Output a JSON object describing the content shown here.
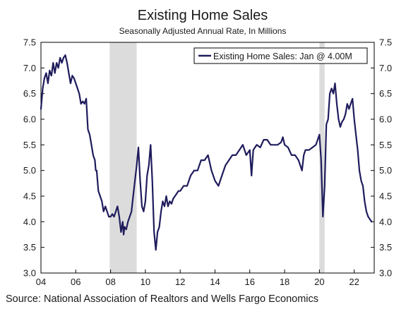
{
  "chart_data": {
    "type": "line",
    "title": "Existing Home Sales",
    "subtitle": "Seasonally Adjusted Annual Rate, In Millions",
    "source": "Source: National Association of Realtors and Wells Fargo Economics",
    "legend": {
      "label": "Existing Home Sales: Jan @ 4.00M",
      "placement": "top-right"
    },
    "x_ticks": [
      {
        "value": 2004,
        "label": "04"
      },
      {
        "value": 2006,
        "label": "06"
      },
      {
        "value": 2008,
        "label": "08"
      },
      {
        "value": 2010,
        "label": "10"
      },
      {
        "value": 2012,
        "label": "12"
      },
      {
        "value": 2014,
        "label": "14"
      },
      {
        "value": 2016,
        "label": "16"
      },
      {
        "value": 2018,
        "label": "18"
      },
      {
        "value": 2020,
        "label": "20"
      },
      {
        "value": 2022,
        "label": "22"
      }
    ],
    "xlim": [
      2004,
      2023.15
    ],
    "ylim": [
      3.0,
      7.5
    ],
    "y_ticks": [
      3.0,
      3.5,
      4.0,
      4.5,
      5.0,
      5.5,
      6.0,
      6.5,
      7.0,
      7.5
    ],
    "y_tick_labels": [
      "3.0",
      "3.5",
      "4.0",
      "4.5",
      "5.0",
      "5.5",
      "6.0",
      "6.5",
      "7.0",
      "7.5"
    ],
    "recessions": [
      [
        2007.95,
        2009.5
      ],
      [
        2020.0,
        2020.3
      ]
    ],
    "series": [
      {
        "name": "Existing Home Sales",
        "color": "#1f1c5c",
        "x": [
          2004.0,
          2004.1,
          2004.2,
          2004.3,
          2004.4,
          2004.5,
          2004.6,
          2004.7,
          2004.8,
          2004.9,
          2005.0,
          2005.1,
          2005.2,
          2005.3,
          2005.4,
          2005.5,
          2005.6,
          2005.7,
          2005.8,
          2005.9,
          2006.0,
          2006.1,
          2006.2,
          2006.3,
          2006.4,
          2006.5,
          2006.6,
          2006.7,
          2006.8,
          2006.9,
          2007.0,
          2007.1,
          2007.15,
          2007.2,
          2007.3,
          2007.4,
          2007.5,
          2007.6,
          2007.7,
          2007.8,
          2007.9,
          2008.0,
          2008.1,
          2008.2,
          2008.3,
          2008.4,
          2008.5,
          2008.6,
          2008.7,
          2008.75,
          2008.8,
          2008.9,
          2009.0,
          2009.1,
          2009.2,
          2009.3,
          2009.4,
          2009.5,
          2009.6,
          2009.7,
          2009.8,
          2009.9,
          2010.0,
          2010.1,
          2010.2,
          2010.3,
          2010.4,
          2010.5,
          2010.6,
          2010.7,
          2010.8,
          2010.9,
          2011.0,
          2011.1,
          2011.2,
          2011.3,
          2011.4,
          2011.5,
          2011.6,
          2011.7,
          2011.8,
          2011.9,
          2012.0,
          2012.2,
          2012.4,
          2012.6,
          2012.8,
          2013.0,
          2013.2,
          2013.4,
          2013.6,
          2013.8,
          2014.0,
          2014.2,
          2014.4,
          2014.6,
          2014.8,
          2015.0,
          2015.2,
          2015.4,
          2015.6,
          2015.8,
          2016.0,
          2016.1,
          2016.2,
          2016.4,
          2016.6,
          2016.8,
          2017.0,
          2017.2,
          2017.4,
          2017.6,
          2017.8,
          2017.9,
          2018.0,
          2018.2,
          2018.4,
          2018.6,
          2018.8,
          2019.0,
          2019.1,
          2019.2,
          2019.4,
          2019.6,
          2019.8,
          2020.0,
          2020.1,
          2020.2,
          2020.3,
          2020.4,
          2020.5,
          2020.6,
          2020.7,
          2020.8,
          2020.9,
          2021.0,
          2021.1,
          2021.2,
          2021.3,
          2021.4,
          2021.5,
          2021.6,
          2021.7,
          2021.8,
          2021.9,
          2022.0,
          2022.1,
          2022.2,
          2022.3,
          2022.4,
          2022.5,
          2022.6,
          2022.7,
          2022.8,
          2022.9,
          2023.0
        ],
        "values": [
          6.2,
          6.6,
          6.8,
          6.9,
          6.7,
          6.95,
          6.85,
          7.1,
          6.9,
          7.1,
          7.0,
          7.2,
          7.1,
          7.2,
          7.25,
          7.1,
          6.9,
          6.7,
          6.85,
          6.8,
          6.7,
          6.6,
          6.5,
          6.3,
          6.35,
          6.3,
          6.4,
          5.8,
          5.7,
          5.5,
          5.3,
          5.2,
          5.0,
          5.0,
          4.6,
          4.5,
          4.4,
          4.2,
          4.3,
          4.2,
          4.1,
          4.1,
          4.15,
          4.1,
          4.2,
          4.3,
          4.1,
          3.8,
          4.0,
          3.75,
          3.9,
          3.85,
          4.0,
          4.1,
          4.2,
          4.5,
          4.8,
          5.1,
          5.45,
          4.8,
          4.3,
          4.2,
          4.4,
          4.9,
          5.1,
          5.5,
          4.8,
          3.8,
          3.45,
          3.8,
          3.9,
          4.2,
          4.4,
          4.3,
          4.5,
          4.3,
          4.4,
          4.35,
          4.45,
          4.5,
          4.55,
          4.6,
          4.6,
          4.7,
          4.7,
          4.9,
          5.0,
          5.0,
          5.2,
          5.2,
          5.3,
          5.0,
          4.8,
          4.7,
          4.9,
          5.1,
          5.2,
          5.3,
          5.3,
          5.4,
          5.5,
          5.3,
          5.4,
          4.9,
          5.4,
          5.5,
          5.45,
          5.6,
          5.6,
          5.5,
          5.5,
          5.5,
          5.55,
          5.65,
          5.5,
          5.45,
          5.3,
          5.3,
          5.2,
          5.0,
          5.3,
          5.4,
          5.4,
          5.45,
          5.5,
          5.7,
          5.2,
          4.1,
          4.7,
          5.9,
          6.0,
          6.5,
          6.6,
          6.5,
          6.7,
          6.3,
          6.0,
          5.85,
          5.95,
          6.0,
          6.1,
          6.3,
          6.2,
          6.3,
          6.4,
          6.0,
          5.7,
          5.4,
          5.0,
          4.8,
          4.7,
          4.4,
          4.2,
          4.1,
          4.05,
          4.0
        ]
      }
    ]
  }
}
